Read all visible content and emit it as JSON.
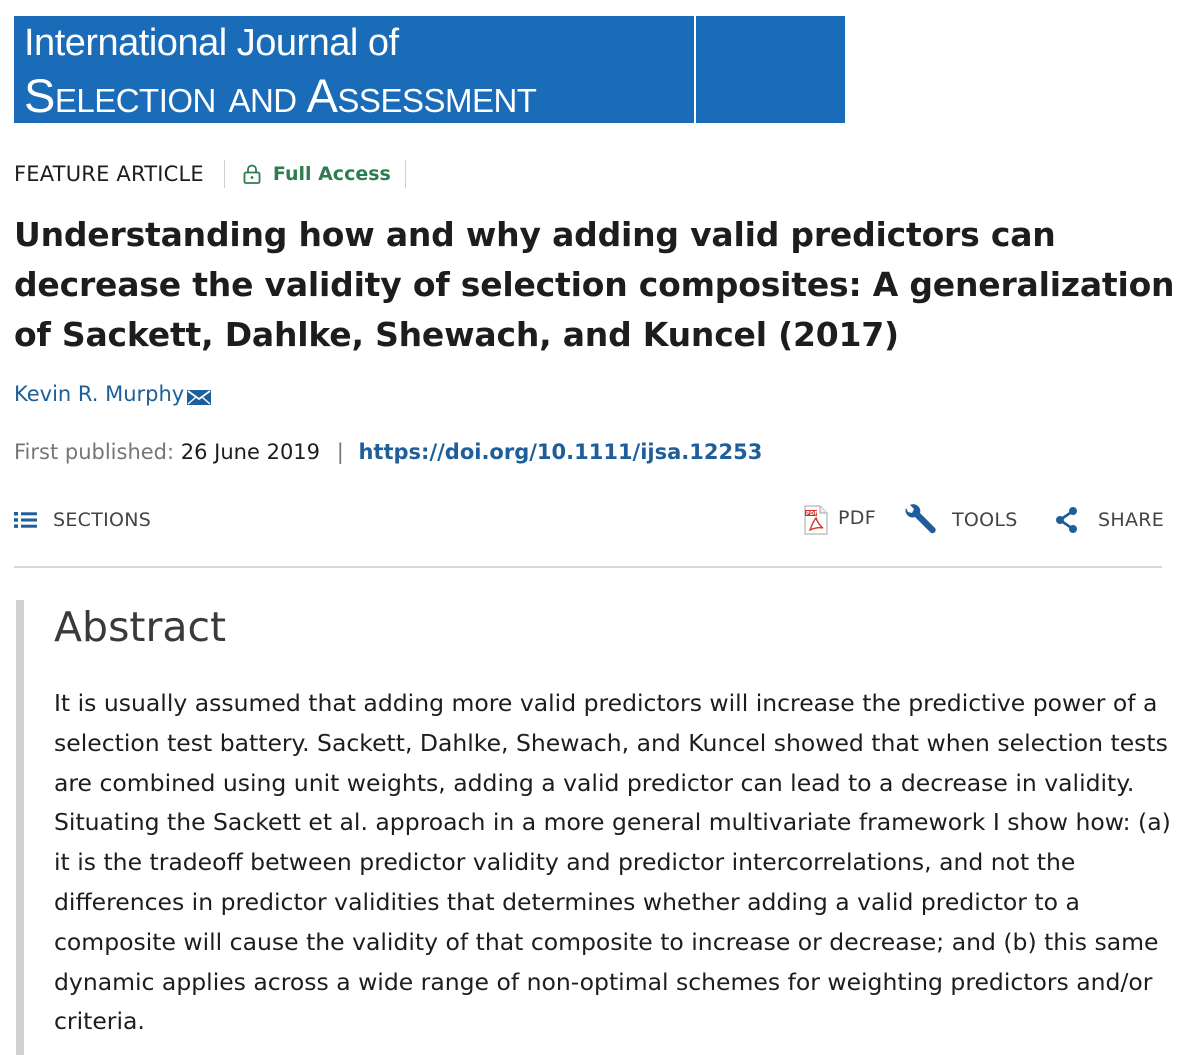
{
  "journal": {
    "line1": "International Journal of",
    "line2": "Selection and Assessment",
    "brand_color": "#1a6bb8"
  },
  "article": {
    "type": "FEATURE ARTICLE",
    "access": "Full Access",
    "access_color": "#2e7d4f",
    "title": "Understanding how and why adding valid predictors can decrease the validity of selection composites: A generalization of Sackett, Dahlke, Shewach, and Kuncel (2017)",
    "author": "Kevin R. Murphy",
    "published_label": "First published:",
    "published_date": "26 June 2019",
    "separator": "|",
    "doi": "https://doi.org/10.1111/ijsa.12253"
  },
  "toolbar": {
    "sections": "SECTIONS",
    "pdf": "PDF",
    "tools": "TOOLS",
    "share": "SHARE"
  },
  "abstract": {
    "heading": "Abstract",
    "text": "It is usually assumed that adding more valid predictors will increase the predictive power of a selection test battery. Sackett, Dahlke, Shewach, and Kuncel showed that when selection tests are combined using unit weights, adding a valid predictor can lead to a decrease in validity. Situating the Sackett et al. approach in a more general multivariate framework I show how: (a) it is the tradeoff between predictor validity and predictor intercorrelations, and not the differences in predictor validities that determines whether adding a valid predictor to a composite will cause the validity of that composite to increase or decrease; and (b) this same dynamic applies across a wide range of non-optimal schemes for weighting predictors and/or criteria."
  },
  "icons": [
    "lock-icon",
    "envelope-icon",
    "list-icon",
    "pdf-icon",
    "wrench-icon",
    "share-icon"
  ],
  "colors": {
    "link": "#1d5e9b",
    "muted": "#767676",
    "text": "#1c1d1e"
  }
}
